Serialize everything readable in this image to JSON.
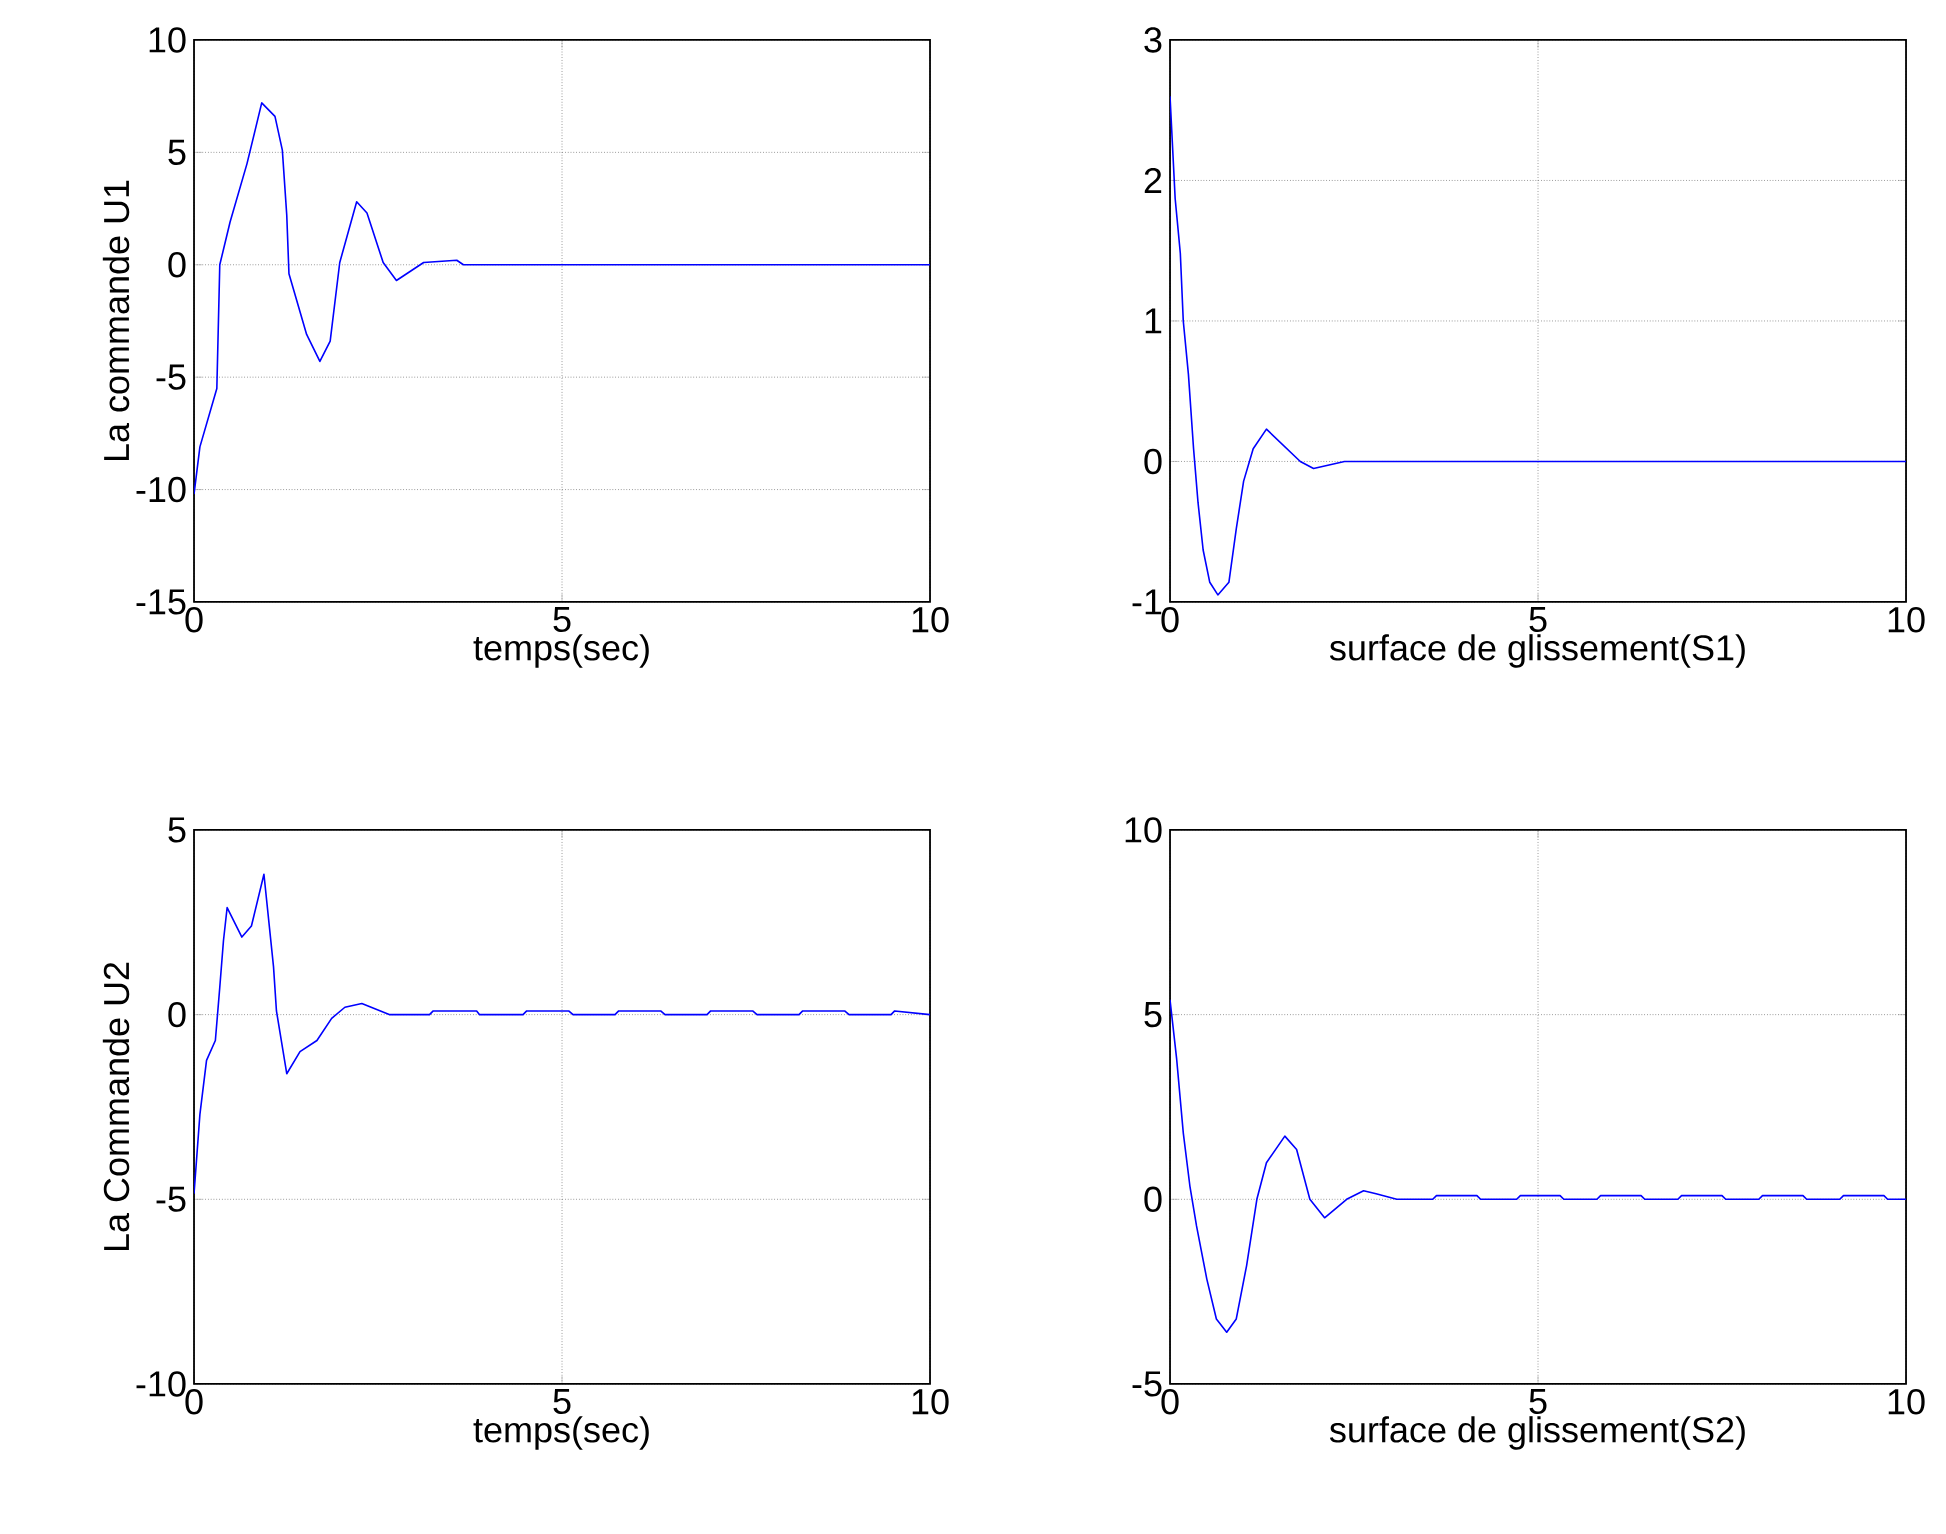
{
  "chart_data": [
    {
      "type": "line",
      "xlabel": "temps(sec)",
      "ylabel": "La commande U1",
      "xlim": [
        0,
        10
      ],
      "ylim": [
        -15,
        10
      ],
      "xticks": [
        0,
        5,
        10
      ],
      "yticks": [
        -15,
        -10,
        -5,
        0,
        5,
        10
      ],
      "grid": true,
      "x": [
        0,
        0.08,
        0.31,
        0.35,
        0.49,
        0.72,
        0.92,
        1.1,
        1.2,
        1.26,
        1.29,
        1.53,
        1.71,
        1.85,
        1.98,
        2.21,
        2.35,
        2.57,
        2.75,
        3.12,
        3.57,
        3.66,
        10
      ],
      "series": [
        {
          "color": "#0000ff",
          "values": [
            -10.2,
            -8.1,
            -5.5,
            0,
            1.9,
            4.5,
            7.2,
            6.6,
            5.1,
            2.2,
            -0.4,
            -3.1,
            -4.3,
            -3.4,
            0.1,
            2.8,
            2.3,
            0.1,
            -0.7,
            0.1,
            0.2,
            0,
            0
          ]
        }
      ]
    },
    {
      "type": "line",
      "xlabel": "surface de glissement(S1)",
      "xlim": [
        0,
        10
      ],
      "ylim": [
        -1,
        3
      ],
      "xticks": [
        0,
        5,
        10
      ],
      "yticks": [
        -1,
        0,
        1,
        2,
        3
      ],
      "grid": true,
      "x": [
        0,
        0.07,
        0.14,
        0.18,
        0.25,
        0.32,
        0.38,
        0.45,
        0.54,
        0.65,
        0.8,
        0.9,
        1.0,
        1.13,
        1.31,
        1.77,
        1.95,
        2.37,
        10
      ],
      "series": [
        {
          "color": "#0000ff",
          "values": [
            2.6,
            1.87,
            1.48,
            1.0,
            0.62,
            0.09,
            -0.29,
            -0.63,
            -0.86,
            -0.95,
            -0.86,
            -0.48,
            -0.14,
            0.09,
            0.23,
            0,
            -0.05,
            0,
            0
          ]
        }
      ]
    },
    {
      "type": "line",
      "xlabel": "temps(sec)",
      "ylabel": "La Commande U2",
      "xlim": [
        0,
        10
      ],
      "ylim": [
        -10,
        5
      ],
      "xticks": [
        0,
        5,
        10
      ],
      "yticks": [
        -10,
        -5,
        0,
        5
      ],
      "grid": true,
      "x": [
        0,
        0.08,
        0.17,
        0.29,
        0.35,
        0.4,
        0.45,
        0.65,
        0.78,
        0.95,
        1.08,
        1.12,
        1.26,
        1.44,
        1.67,
        1.87,
        2.05,
        2.28,
        2.66,
        3.2,
        3.25,
        3.84,
        3.88,
        4.47,
        4.52,
        5.09,
        5.15,
        5.72,
        5.77,
        6.34,
        6.4,
        6.97,
        7.02,
        7.59,
        7.65,
        8.22,
        8.27,
        8.84,
        8.9,
        9.47,
        9.52,
        10
      ],
      "series": [
        {
          "color": "#0000ff",
          "values": [
            -4.85,
            -2.7,
            -1.24,
            -0.7,
            0.74,
            2.0,
            2.9,
            2.1,
            2.4,
            3.8,
            1.3,
            0.1,
            -1.6,
            -1.0,
            -0.7,
            -0.1,
            0.2,
            0.3,
            0,
            0,
            0.1,
            0.1,
            0,
            0,
            0.1,
            0.1,
            0,
            0,
            0.1,
            0.1,
            0,
            0,
            0.1,
            0.1,
            0,
            0,
            0.1,
            0.1,
            0,
            0,
            0.1,
            0
          ]
        }
      ]
    },
    {
      "type": "line",
      "xlabel": "surface de glissement(S2)",
      "xlim": [
        0,
        10
      ],
      "ylim": [
        -5,
        10
      ],
      "xticks": [
        0,
        5,
        10
      ],
      "yticks": [
        -5,
        0,
        5,
        10
      ],
      "grid": true,
      "x": [
        0,
        0.09,
        0.18,
        0.27,
        0.36,
        0.5,
        0.63,
        0.77,
        0.9,
        1.04,
        1.18,
        1.31,
        1.56,
        1.72,
        1.9,
        2.1,
        2.4,
        2.63,
        2.8,
        3.08,
        3.57,
        3.62,
        4.17,
        4.22,
        4.71,
        4.76,
        5.3,
        5.35,
        5.8,
        5.85,
        6.4,
        6.45,
        6.9,
        6.95,
        7.5,
        7.55,
        8.0,
        8.05,
        8.6,
        8.65,
        9.1,
        9.15,
        9.7,
        9.75,
        10
      ],
      "series": [
        {
          "color": "#0000ff",
          "values": [
            5.4,
            3.8,
            1.8,
            0.36,
            -0.72,
            -2.16,
            -3.24,
            -3.6,
            -3.24,
            -1.8,
            0,
            0.99,
            1.71,
            1.35,
            0,
            -0.5,
            0,
            0.23,
            0.15,
            0,
            0,
            0.1,
            0.1,
            0,
            0,
            0.1,
            0.1,
            0,
            0,
            0.1,
            0.1,
            0,
            0,
            0.1,
            0.1,
            0,
            0,
            0.1,
            0.1,
            0,
            0,
            0.1,
            0.1,
            0,
            0
          ]
        }
      ]
    }
  ]
}
